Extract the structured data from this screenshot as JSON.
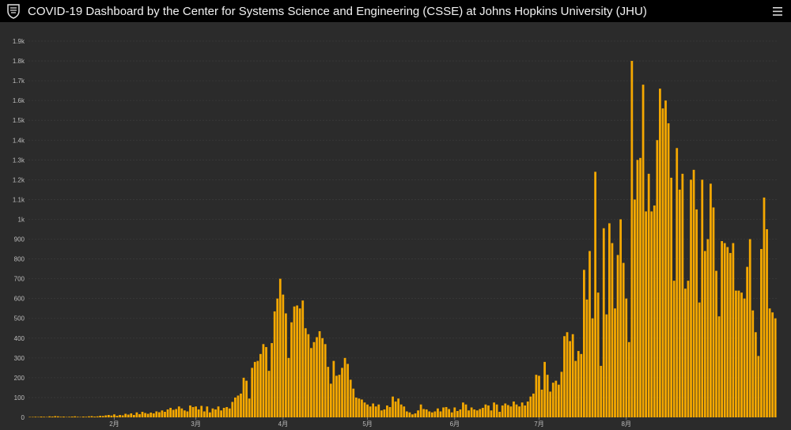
{
  "header": {
    "title": "COVID-19 Dashboard by the Center for Systems Science and Engineering (CSSE) at Johns Hopkins University (JHU)",
    "logo_icon": "jhu-shield-icon",
    "menu_icon": "hamburger-menu-icon"
  },
  "colors": {
    "bar": "#f5a800",
    "background": "#2b2b2b",
    "header": "#000000",
    "grid": "#3a3a3a",
    "tick_text": "#bdbdbd"
  },
  "chart_data": {
    "type": "bar",
    "title": "",
    "xlabel": "",
    "ylabel": "",
    "ylim": [
      0,
      1900
    ],
    "grid": true,
    "y_ticks": [
      {
        "value": 0,
        "label": "0"
      },
      {
        "value": 100,
        "label": "100"
      },
      {
        "value": 200,
        "label": "200"
      },
      {
        "value": 300,
        "label": "300"
      },
      {
        "value": 400,
        "label": "400"
      },
      {
        "value": 500,
        "label": "500"
      },
      {
        "value": 600,
        "label": "600"
      },
      {
        "value": 700,
        "label": "700"
      },
      {
        "value": 800,
        "label": "800"
      },
      {
        "value": 900,
        "label": "900"
      },
      {
        "value": 1000,
        "label": "1k"
      },
      {
        "value": 1100,
        "label": "1.1k"
      },
      {
        "value": 1200,
        "label": "1.2k"
      },
      {
        "value": 1300,
        "label": "1.3k"
      },
      {
        "value": 1400,
        "label": "1.4k"
      },
      {
        "value": 1500,
        "label": "1.5k"
      },
      {
        "value": 1600,
        "label": "1.6k"
      },
      {
        "value": 1700,
        "label": "1.7k"
      },
      {
        "value": 1800,
        "label": "1.8k"
      },
      {
        "value": 1900,
        "label": "1.9k"
      }
    ],
    "x_ticks": [
      {
        "index": 30,
        "label": "2月"
      },
      {
        "index": 59,
        "label": "3月"
      },
      {
        "index": 90,
        "label": "4月"
      },
      {
        "index": 120,
        "label": "5月"
      },
      {
        "index": 151,
        "label": "6月"
      },
      {
        "index": 181,
        "label": "7月"
      },
      {
        "index": 212,
        "label": "8月"
      }
    ],
    "values": [
      2,
      2,
      3,
      2,
      4,
      3,
      2,
      5,
      4,
      6,
      5,
      3,
      4,
      2,
      3,
      4,
      5,
      3,
      2,
      4,
      3,
      5,
      6,
      4,
      5,
      8,
      7,
      10,
      12,
      9,
      15,
      8,
      12,
      10,
      18,
      14,
      20,
      12,
      25,
      16,
      28,
      22,
      18,
      24,
      20,
      30,
      26,
      35,
      28,
      40,
      48,
      38,
      42,
      55,
      45,
      35,
      30,
      60,
      52,
      55,
      40,
      58,
      30,
      55,
      25,
      45,
      40,
      55,
      35,
      48,
      52,
      45,
      78,
      100,
      110,
      120,
      200,
      185,
      95,
      250,
      280,
      285,
      320,
      370,
      355,
      235,
      375,
      535,
      600,
      700,
      620,
      525,
      300,
      480,
      560,
      565,
      550,
      590,
      450,
      420,
      350,
      380,
      405,
      435,
      400,
      370,
      255,
      170,
      285,
      210,
      215,
      250,
      300,
      270,
      190,
      145,
      100,
      95,
      90,
      75,
      65,
      55,
      70,
      55,
      65,
      35,
      40,
      60,
      52,
      105,
      80,
      95,
      65,
      55,
      30,
      25,
      15,
      20,
      35,
      65,
      42,
      40,
      30,
      25,
      30,
      45,
      30,
      50,
      52,
      42,
      25,
      50,
      32,
      40,
      75,
      65,
      35,
      50,
      40,
      35,
      42,
      48,
      65,
      60,
      35,
      75,
      65,
      28,
      60,
      70,
      62,
      55,
      80,
      65,
      55,
      75,
      60,
      80,
      105,
      120,
      215,
      210,
      140,
      280,
      215,
      130,
      175,
      185,
      165,
      230,
      410,
      430,
      385,
      420,
      285,
      335,
      320,
      745,
      595,
      840,
      500,
      1240,
      630,
      260,
      955,
      520,
      980,
      880,
      550,
      820,
      1000,
      780,
      600,
      380,
      1800,
      1100,
      1300,
      1310,
      1680,
      1040,
      1230,
      1040,
      1070,
      1400,
      1660,
      1560,
      1600,
      1485,
      1210,
      690,
      1360,
      1150,
      1230,
      650,
      690,
      1200,
      1250,
      1050,
      580,
      1200,
      840,
      900,
      1180,
      1060,
      740,
      510,
      890,
      880,
      860,
      830,
      880,
      640,
      640,
      630,
      600,
      760,
      900,
      540,
      430,
      310,
      850,
      1110,
      950,
      550,
      530,
      500
    ]
  }
}
